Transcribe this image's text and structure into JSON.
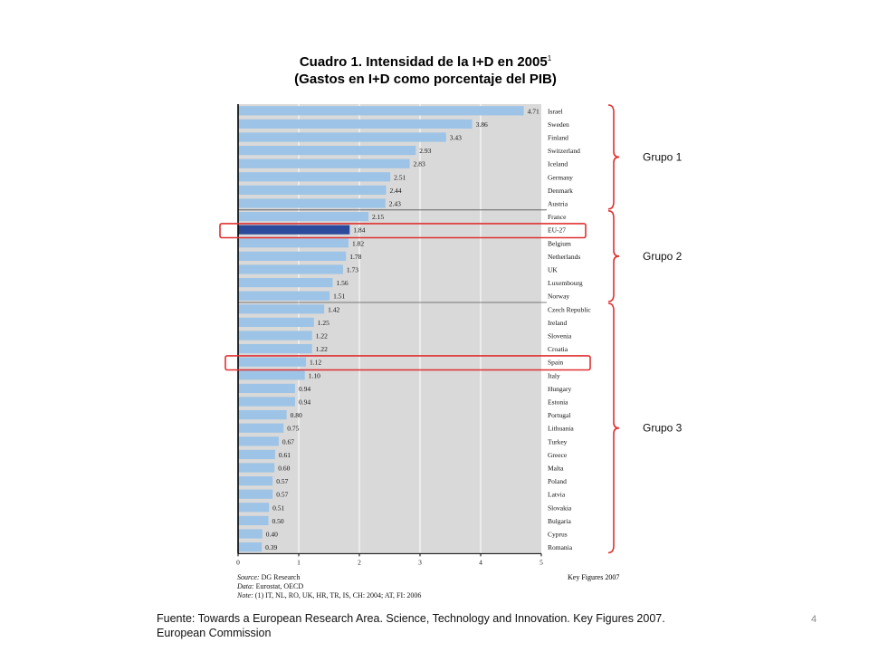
{
  "title_main": "Cuadro 1. Intensidad de la I+D en 2005",
  "title_sup": "1",
  "title_sub": "(Gastos en I+D como porcentaje del PIB)",
  "chart_data": {
    "type": "bar",
    "orientation": "horizontal",
    "categories": [
      "Israel",
      "Sweden",
      "Finland",
      "Switzerland",
      "Iceland",
      "Germany",
      "Denmark",
      "Austria",
      "France",
      "EU-27",
      "Belgium",
      "Netherlands",
      "UK",
      "Luxembourg",
      "Norway",
      "Czech Republic",
      "Ireland",
      "Slovenia",
      "Croatia",
      "Spain",
      "Italy",
      "Hungary",
      "Estonia",
      "Portugal",
      "Lithuania",
      "Turkey",
      "Greece",
      "Malta",
      "Poland",
      "Latvia",
      "Slovakia",
      "Bulgaria",
      "Cyprus",
      "Romania"
    ],
    "values": [
      4.71,
      3.86,
      3.43,
      2.93,
      2.83,
      2.51,
      2.44,
      2.43,
      2.15,
      1.84,
      1.82,
      1.78,
      1.73,
      1.56,
      1.51,
      1.42,
      1.25,
      1.22,
      1.22,
      1.12,
      1.1,
      0.94,
      0.94,
      0.8,
      0.75,
      0.67,
      0.61,
      0.6,
      0.57,
      0.57,
      0.51,
      0.5,
      0.4,
      0.39
    ],
    "value_labels": [
      "4.71",
      "3.86",
      "3.43",
      "2.93",
      "2.83",
      "2.51",
      "2.44",
      "2.43",
      "2.15",
      "1.84",
      "1.82",
      "1.78",
      "1.73",
      "1.56",
      "1.51",
      "1.42",
      "1.25",
      "1.22",
      "1.22",
      "1.12",
      "1.10",
      "0.94",
      "0.94",
      "0.80",
      "0.75",
      "0.67",
      "0.61",
      "0.60",
      "0.57",
      "0.57",
      "0.51",
      "0.50",
      "0.40",
      "0.39"
    ],
    "highlight": "EU-27",
    "xlim": [
      0,
      5
    ],
    "xticks": [
      "0",
      "1",
      "2",
      "3",
      "4",
      "5"
    ],
    "groups": [
      {
        "label": "Grupo 1",
        "from": 0,
        "to": 7
      },
      {
        "label": "Grupo 2",
        "from": 8,
        "to": 14
      },
      {
        "label": "Grupo 3",
        "from": 15,
        "to": 33
      }
    ],
    "boxed_rows": [
      "EU-27",
      "Spain"
    ],
    "colors": {
      "bar": "#9dc3e6",
      "highlight": "#2b4a9c",
      "plot_bg": "#d9d9d9",
      "box": "#e03030",
      "brace": "#e03030"
    }
  },
  "notes": {
    "source_label": "Source:",
    "source_text": "DG Research",
    "data_label": "Data:",
    "data_text": "Eurostat, OECD",
    "note_label": "Note:",
    "note_text": "(1) IT, NL, RO, UK, HR, TR, IS, CH: 2004; AT, FI: 2006",
    "keyfig": "Key Figures 2007"
  },
  "footer_line1": "Fuente: Towards a European Research Area. Science, Technology and Innovation. Key Figures 2007.",
  "footer_line2": "European Commission",
  "page_number": "4"
}
